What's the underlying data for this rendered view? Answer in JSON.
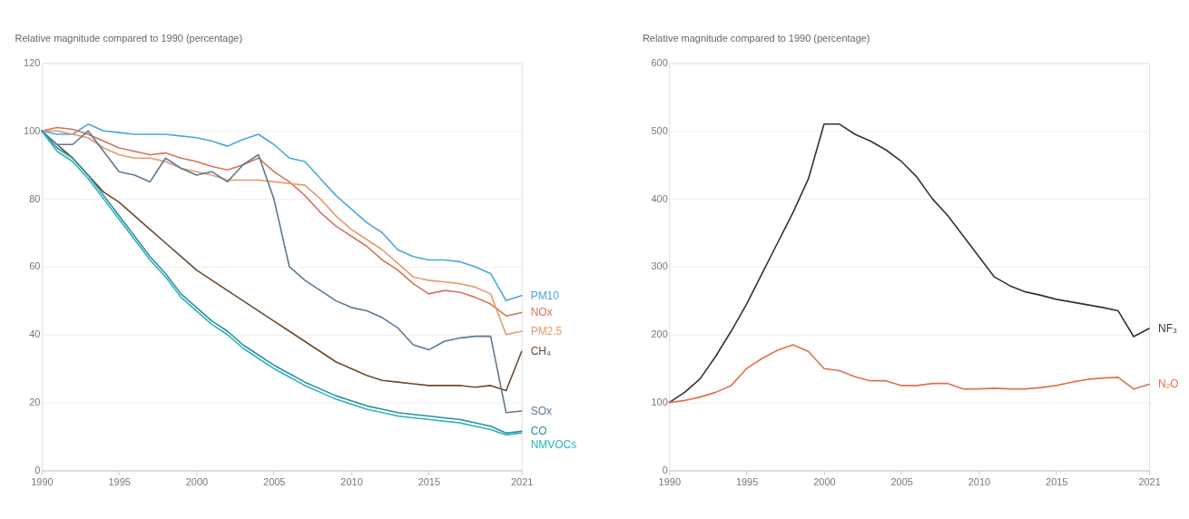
{
  "chart_data": [
    {
      "type": "line",
      "ylabel": "Relative magnitude compared to 1990 (percentage)",
      "x": [
        1990,
        1991,
        1992,
        1993,
        1994,
        1995,
        1996,
        1997,
        1998,
        1999,
        2000,
        2001,
        2002,
        2003,
        2004,
        2005,
        2006,
        2007,
        2008,
        2009,
        2010,
        2011,
        2012,
        2013,
        2014,
        2015,
        2016,
        2017,
        2018,
        2019,
        2020,
        2021
      ],
      "xlim": [
        1990,
        2021
      ],
      "xticks": [
        1990,
        1995,
        2000,
        2005,
        2010,
        2015,
        2021
      ],
      "ylim": [
        0,
        120
      ],
      "yticks": [
        0,
        20,
        40,
        60,
        80,
        100,
        120
      ],
      "grid": "y",
      "legend": false,
      "marker": "none",
      "line_style": "solid",
      "series": [
        {
          "name": "PM10",
          "color": "#4aa8d8",
          "values": [
            100,
            99,
            99,
            102,
            100,
            99.5,
            99,
            99,
            99,
            98.5,
            98,
            97,
            95.5,
            97.5,
            99,
            96,
            92,
            91,
            86,
            81,
            77,
            73,
            70,
            65,
            63,
            62,
            62,
            61.5,
            60,
            58,
            50,
            51.5
          ]
        },
        {
          "name": "NOx",
          "color": "#d9735a",
          "values": [
            100,
            101,
            100.5,
            99,
            97,
            95,
            94,
            93,
            93.5,
            92,
            91,
            89.5,
            88.5,
            90,
            92,
            88,
            85,
            81,
            76,
            72,
            69,
            66,
            62,
            59,
            55,
            52,
            53,
            52.5,
            51,
            49,
            45.5,
            46.5
          ]
        },
        {
          "name": "PM2.5",
          "color": "#e39b6b",
          "values": [
            100,
            100,
            99,
            98,
            95,
            93,
            92,
            92,
            91,
            89,
            88,
            87,
            85.5,
            85.5,
            85.5,
            85,
            84.5,
            84,
            80,
            75,
            71,
            68,
            65,
            61,
            57,
            56,
            55.5,
            55,
            54,
            52,
            40,
            41
          ]
        },
        {
          "name": "CH₄",
          "color": "#6b4a2e",
          "values": [
            100,
            96,
            92,
            87,
            82,
            79,
            75,
            71,
            67,
            63,
            59,
            56,
            53,
            50,
            47,
            44,
            41,
            38,
            35,
            32,
            30,
            28,
            26.5,
            26,
            25.5,
            25,
            25,
            25,
            24.5,
            25,
            23.5,
            35
          ]
        },
        {
          "name": "SOx",
          "color": "#5a7a96",
          "values": [
            100,
            96,
            96,
            100,
            94,
            88,
            87,
            85,
            92,
            89,
            87,
            88,
            85,
            90,
            93,
            80,
            60,
            56,
            53,
            50,
            48,
            47,
            45,
            42,
            37,
            35.5,
            38,
            39,
            39.5,
            39.5,
            17,
            17.5
          ]
        },
        {
          "name": "CO",
          "color": "#2b8fa3",
          "values": [
            100,
            95,
            92,
            87,
            81,
            75,
            69,
            63,
            58,
            52,
            48,
            44,
            41,
            37,
            34,
            31,
            28.5,
            26,
            24,
            22,
            20.5,
            19,
            18,
            17,
            16.5,
            16,
            15.5,
            15,
            14,
            13,
            11,
            11.5
          ]
        },
        {
          "name": "NMVOCs",
          "color": "#2bb3b8",
          "values": [
            100,
            94,
            91,
            86,
            80,
            74,
            68,
            62,
            57,
            51,
            47,
            43,
            40,
            36,
            33,
            30,
            27.5,
            25,
            23,
            21,
            19.5,
            18,
            17,
            16,
            15.5,
            15,
            14.5,
            14,
            13,
            12,
            10.5,
            11
          ]
        }
      ]
    },
    {
      "type": "line",
      "ylabel": "Relative magnitude compared to 1990 (percentage)",
      "x": [
        1990,
        1991,
        1992,
        1993,
        1994,
        1995,
        1996,
        1997,
        1998,
        1999,
        2000,
        2001,
        2002,
        2003,
        2004,
        2005,
        2006,
        2007,
        2008,
        2009,
        2010,
        2011,
        2012,
        2013,
        2014,
        2015,
        2016,
        2017,
        2018,
        2019,
        2020,
        2021
      ],
      "xlim": [
        1990,
        2021
      ],
      "xticks": [
        1990,
        1995,
        2000,
        2005,
        2010,
        2015,
        2021
      ],
      "ylim": [
        0,
        600
      ],
      "yticks": [
        0,
        100,
        200,
        300,
        400,
        500,
        600
      ],
      "grid": "y",
      "legend": false,
      "marker": "none",
      "line_style": "solid",
      "series": [
        {
          "name": "NF₃",
          "color": "#333333",
          "values": [
            100,
            115,
            135,
            168,
            205,
            245,
            290,
            335,
            380,
            430,
            510,
            510,
            495,
            485,
            472,
            455,
            432,
            400,
            375,
            345,
            315,
            285,
            272,
            263,
            258,
            252,
            248,
            244,
            240,
            235,
            197,
            209
          ]
        },
        {
          "name": "N₂O",
          "color": "#e07050",
          "values": [
            100,
            103,
            108,
            115,
            125,
            150,
            165,
            177,
            185,
            175,
            150,
            147,
            138,
            132,
            132,
            125,
            125,
            128,
            128,
            120,
            120,
            121,
            120,
            120,
            122,
            125,
            130,
            134,
            136,
            137,
            120,
            127
          ]
        }
      ]
    }
  ]
}
